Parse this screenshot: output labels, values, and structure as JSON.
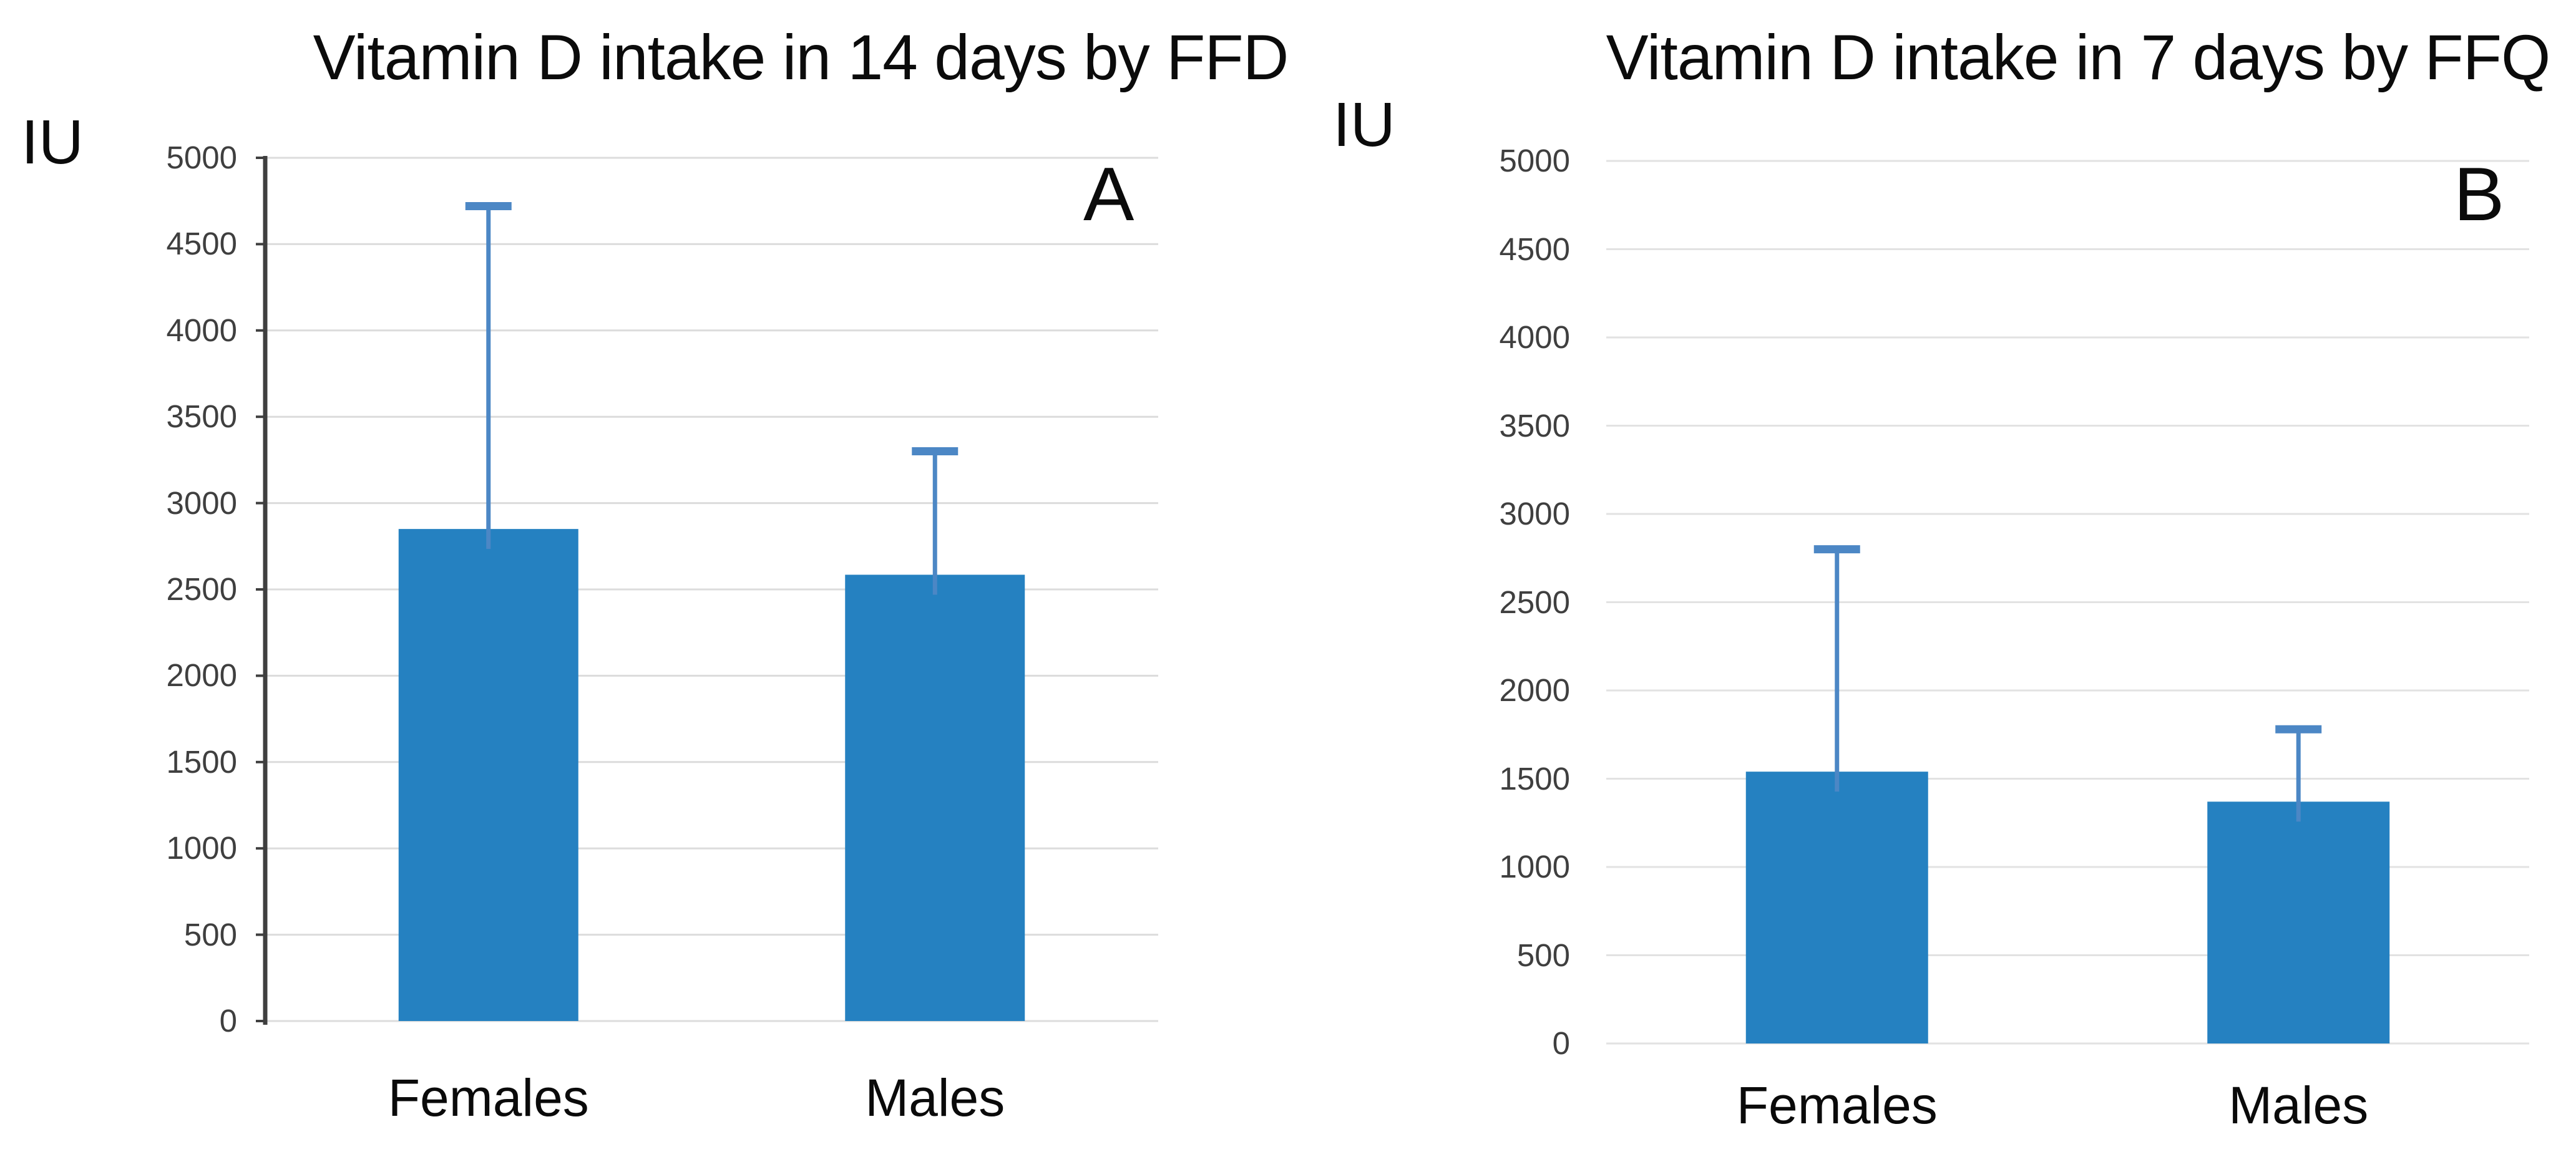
{
  "figure": {
    "background_color": "#ffffff",
    "description": "Two-panel bar chart figure comparing vitamin D intake by sex"
  },
  "chart_data": [
    {
      "panel": "A",
      "type": "bar",
      "title": "Vitamin D intake in 14 days by FFD",
      "y_axis_unit_label": "IU",
      "categories": [
        "Females",
        "Males"
      ],
      "values": [
        2850,
        2585
      ],
      "error_bar_top_values": [
        4720,
        3300
      ],
      "ylim": [
        0,
        5000
      ],
      "ytick_interval": 500,
      "ytick_labels": [
        "5000",
        "4500",
        "4000",
        "3500",
        "3000",
        "2500",
        "2000",
        "1500",
        "1000",
        "500",
        "0"
      ],
      "grid": true,
      "has_y_axis_line": true,
      "legend": "none",
      "bar_color": "#2581c1",
      "error_bar_color": "#4c87c5",
      "gridline_color": "#dcdcdc",
      "axis_color": "#3f3f3f",
      "tick_label_color": "#3f3f3f",
      "text_color": "#0b0b0b"
    },
    {
      "panel": "B",
      "type": "bar",
      "title": "Vitamin D intake in 7 days by FFQ",
      "y_axis_unit_label": "IU",
      "categories": [
        "Females",
        "Males"
      ],
      "values": [
        1540,
        1370
      ],
      "error_bar_top_values": [
        2800,
        1780
      ],
      "ylim": [
        0,
        5000
      ],
      "ytick_interval": 500,
      "ytick_labels": [
        "5000",
        "4500",
        "4000",
        "3500",
        "3000",
        "2500",
        "2000",
        "1500",
        "1000",
        "500",
        "0"
      ],
      "grid": true,
      "has_y_axis_line": false,
      "legend": "none",
      "bar_color": "#2581c1",
      "error_bar_color": "#4c87c5",
      "gridline_color": "#e2e2e2",
      "axis_color": "#3f3f3f",
      "tick_label_color": "#3f3f3f",
      "text_color": "#0b0b0b"
    }
  ]
}
